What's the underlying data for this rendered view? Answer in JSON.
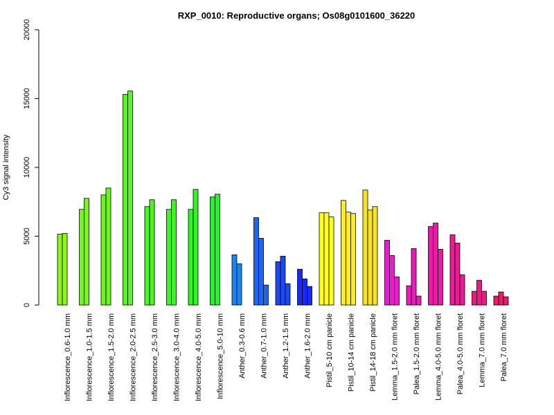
{
  "chart_data": {
    "type": "bar",
    "title": "RXP_0010: Reproductive organs; Os08g0101600_36220",
    "xlabel": "",
    "ylabel": "Cy3 signal intensity",
    "ylim": [
      0,
      20000
    ],
    "yticks": [
      "0",
      "5000",
      "10000",
      "15000",
      "20000"
    ],
    "groups": [
      {
        "label": "Inflorescence_0.6-1.0 mm",
        "color": "#8cf51a",
        "values": [
          5150,
          5200
        ]
      },
      {
        "label": "Inflorescence_1.0-1.5 mm",
        "color": "#78f520",
        "values": [
          6950,
          7750
        ]
      },
      {
        "label": "Inflorescence_1.5-2.0 mm",
        "color": "#68f521",
        "values": [
          8000,
          8500
        ]
      },
      {
        "label": "Inflorescence_2.0-2.5 mm",
        "color": "#5af522",
        "values": [
          15300,
          15550
        ]
      },
      {
        "label": "Inflorescence_2.5-3.0 mm",
        "color": "#4cf522",
        "values": [
          7150,
          7650
        ]
      },
      {
        "label": "Inflorescence_3.0-4.0 mm",
        "color": "#3ef523",
        "values": [
          6950,
          7650
        ]
      },
      {
        "label": "Inflorescence_4.0-5.0 mm",
        "color": "#2ef524",
        "values": [
          6950,
          8400
        ]
      },
      {
        "label": "Inflorescence_5.0-10 mm",
        "color": "#22f528",
        "values": [
          7850,
          8050
        ]
      },
      {
        "label": "Anther_0.3-0.6 mm",
        "color": "#1a86f5",
        "values": [
          3650,
          3000
        ]
      },
      {
        "label": "Anther_0.7-1.0 mm",
        "color": "#1a66f5",
        "values": [
          6350,
          4850,
          1450
        ]
      },
      {
        "label": "Anther_1.2-1.5 mm",
        "color": "#1a4af5",
        "values": [
          3150,
          3550,
          1550
        ]
      },
      {
        "label": "Anther_1.6-2.0 mm",
        "color": "#1a2af5",
        "values": [
          2600,
          1900,
          1350
        ]
      },
      {
        "label": "Pistil_5-10 cm panicle",
        "color": "#fdfd1e",
        "values": [
          6700,
          6700,
          6400
        ]
      },
      {
        "label": "Pistil_10-14 cm panicle",
        "color": "#fbed21",
        "values": [
          7600,
          6750,
          6650
        ]
      },
      {
        "label": "Pistil_14-18 cm panicle",
        "color": "#f8e226",
        "values": [
          8350,
          6900,
          7150
        ]
      },
      {
        "label": "Lemma_1.5-2.0 mm floret",
        "color": "#ec1ad1",
        "values": [
          4700,
          3600,
          2050
        ]
      },
      {
        "label": "Palea_1.5-2.0 mm floret",
        "color": "#ec1abd",
        "values": [
          1400,
          4100,
          650
        ]
      },
      {
        "label": "Lemma_4.0-5.0 mm floret",
        "color": "#ec1aa9",
        "values": [
          5700,
          5950,
          4050
        ]
      },
      {
        "label": "Palea_4.0-5.0 mm floret",
        "color": "#ec1a95",
        "values": [
          5100,
          4500,
          2200
        ]
      },
      {
        "label": "Lemma_7.0 mm floret",
        "color": "#ec1a81",
        "values": [
          1000,
          1800,
          1000
        ]
      },
      {
        "label": "Palea_7.0 mm floret",
        "color": "#ec1a6d",
        "values": [
          650,
          950,
          600
        ]
      }
    ]
  }
}
